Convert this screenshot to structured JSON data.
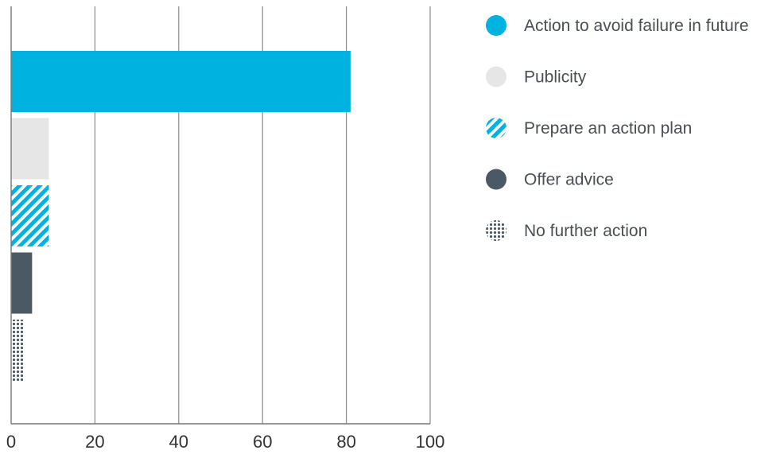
{
  "chart_data": {
    "type": "bar",
    "orientation": "horizontal",
    "categories": [
      "Action to avoid failure in future",
      "Publicity",
      "Prepare an action plan",
      "Offer advice",
      "No further action"
    ],
    "values": [
      81,
      9,
      9,
      5,
      3
    ],
    "xlim": [
      0,
      100
    ],
    "xticks": [
      "0",
      "20",
      "40",
      "60",
      "80",
      "100"
    ],
    "grid": true,
    "legend_placement": "right",
    "colors": [
      "#00b2e0",
      "#e6e6e6",
      "#00b2e0",
      "#4b5964",
      "#4b5964"
    ],
    "fills": [
      "solid",
      "solid",
      "stripes",
      "solid",
      "dots"
    ]
  }
}
